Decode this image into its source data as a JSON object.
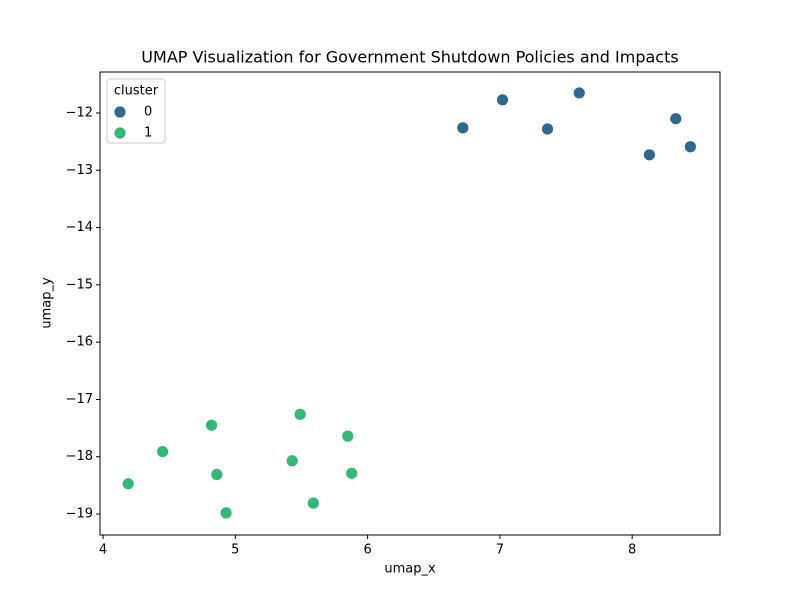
{
  "chart_data": {
    "type": "scatter",
    "title": "UMAP Visualization for Government Shutdown Policies and Impacts",
    "x_label": "umap_x",
    "y_label": "umap_y",
    "legend_title": "cluster",
    "legend_position": "upper left",
    "xlim": [
      3.977,
      8.664
    ],
    "ylim": [
      -19.366,
      -11.285
    ],
    "xticks": [
      4,
      5,
      6,
      7,
      8
    ],
    "yticks": [
      {
        "value": -12,
        "label": "−12"
      },
      {
        "value": -13,
        "label": "−13"
      },
      {
        "value": -14,
        "label": "−14"
      },
      {
        "value": -15,
        "label": "−15"
      },
      {
        "value": -16,
        "label": "−16"
      },
      {
        "value": -17,
        "label": "−17"
      },
      {
        "value": -18,
        "label": "−18"
      },
      {
        "value": -19,
        "label": "−19"
      }
    ],
    "series": [
      {
        "name": "0",
        "color": "#31688e",
        "x": [
          6.72,
          7.02,
          7.36,
          7.6,
          8.13,
          8.33,
          8.44
        ],
        "values": [
          -12.26,
          -11.77,
          -12.28,
          -11.65,
          -12.73,
          -12.1,
          -12.59
        ]
      },
      {
        "name": "1",
        "color": "#35b779",
        "x": [
          4.19,
          4.45,
          4.82,
          4.86,
          4.93,
          5.43,
          5.49,
          5.59,
          5.85,
          5.88
        ],
        "values": [
          -18.47,
          -17.91,
          -17.45,
          -18.31,
          -18.98,
          -18.07,
          -17.26,
          -18.81,
          -17.64,
          -18.29
        ]
      }
    ]
  }
}
